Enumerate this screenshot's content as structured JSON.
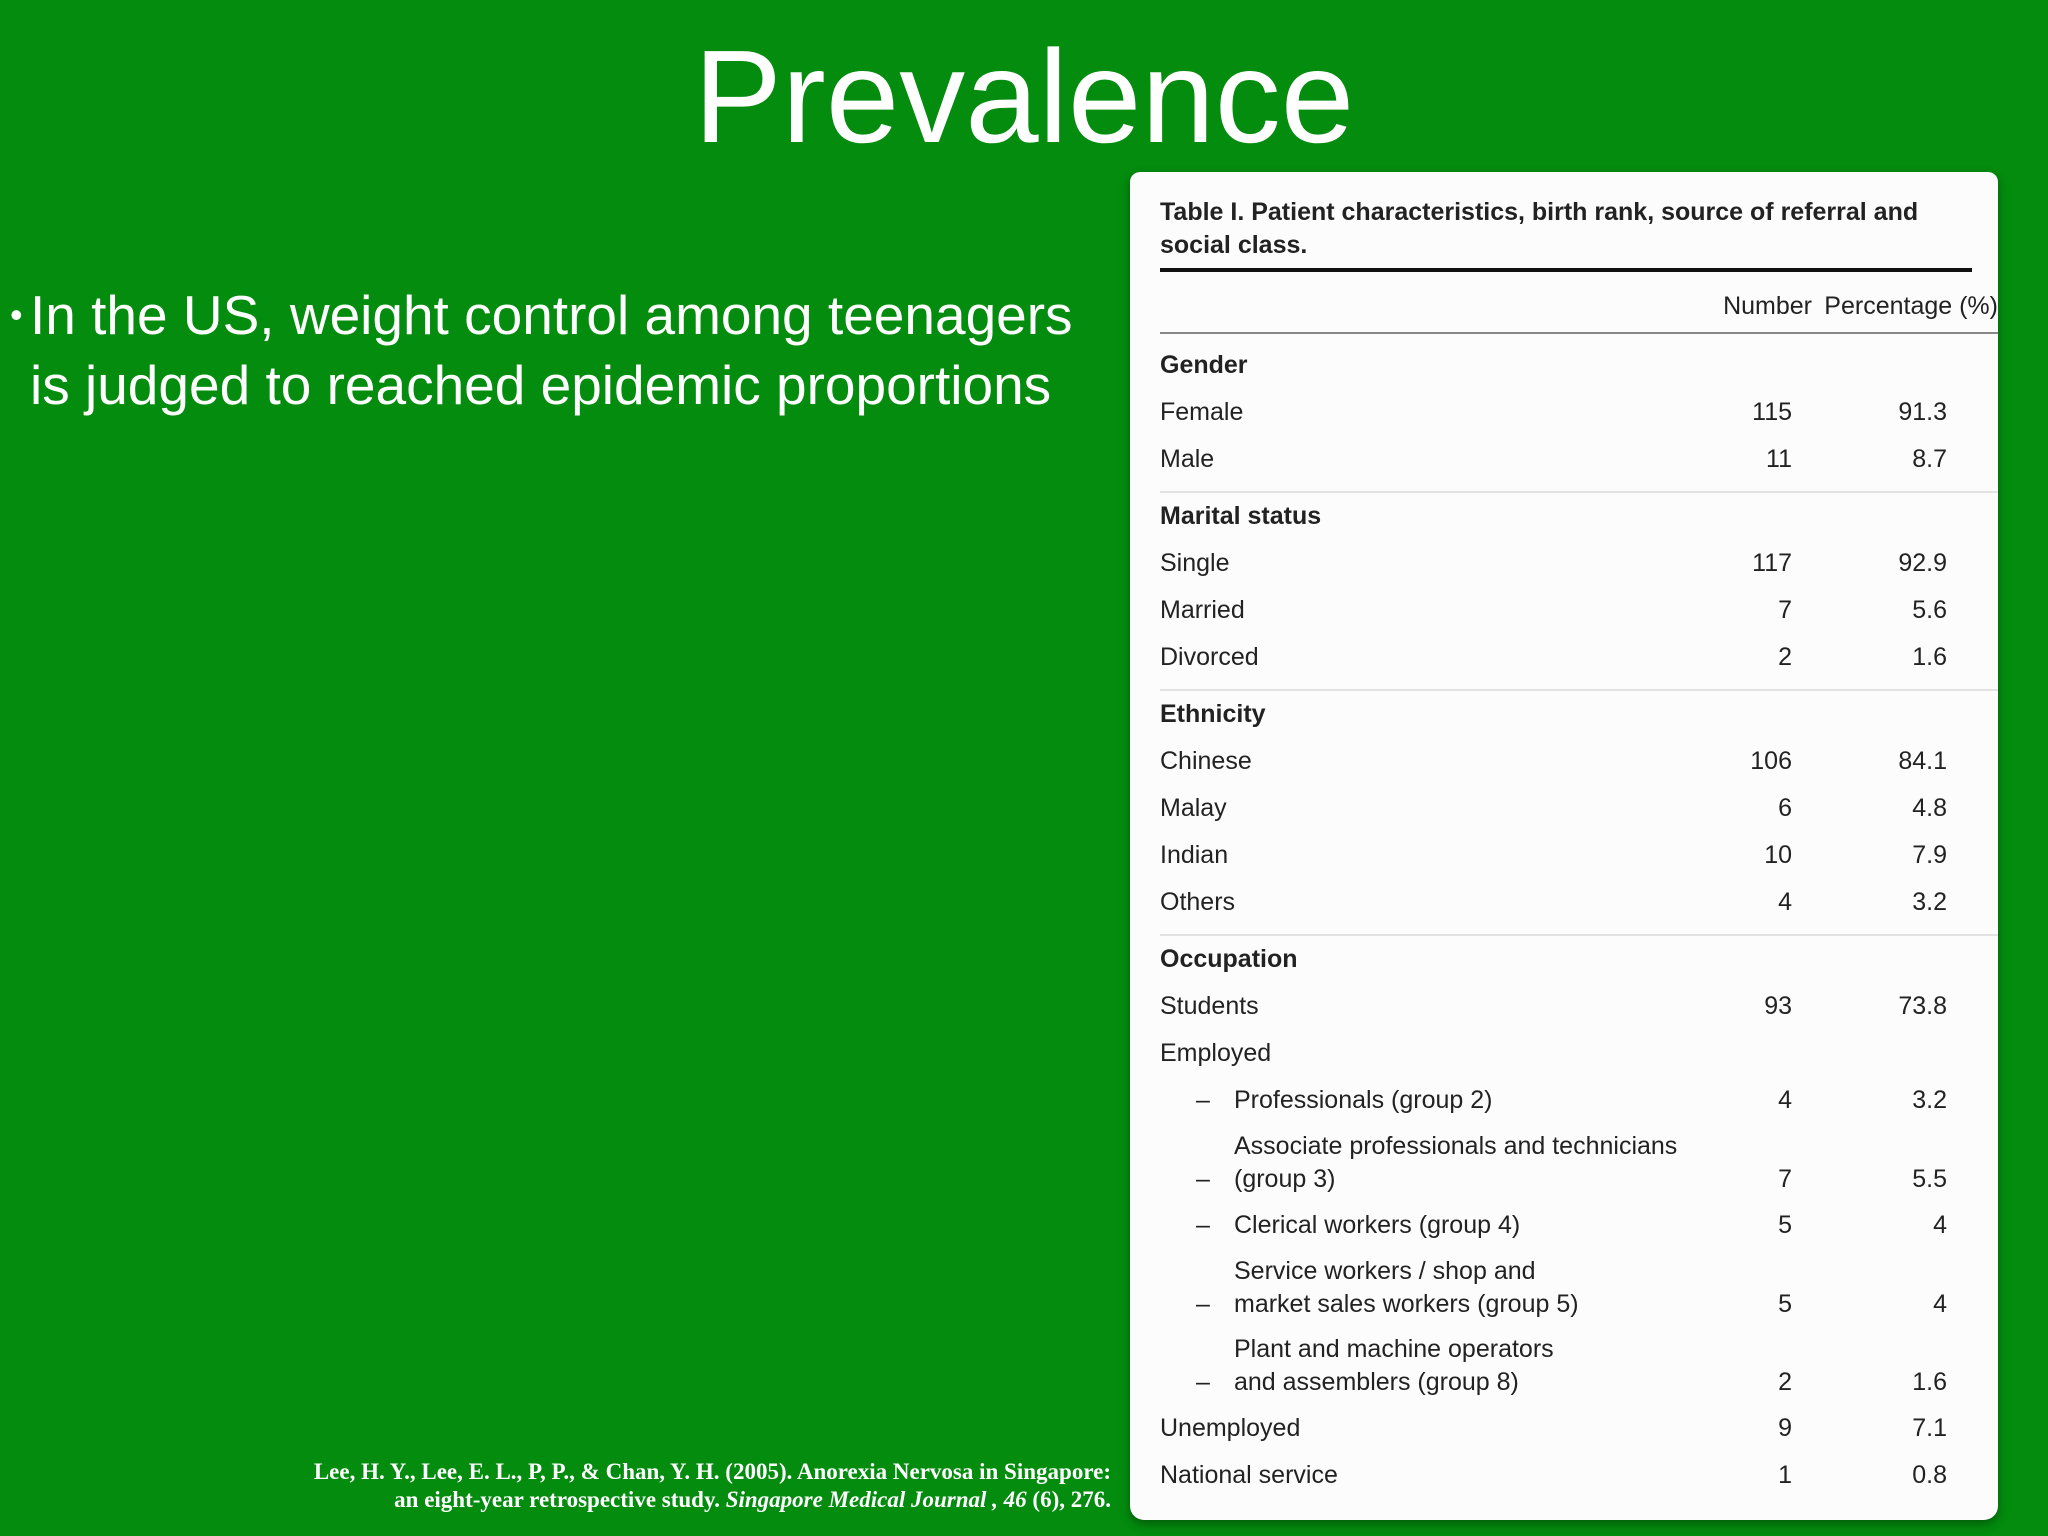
{
  "title": "Prevalence",
  "bullets": [
    "In the US, weight control among teenagers is judged to reached epidemic proportions"
  ],
  "table": {
    "caption": "Table I. Patient characteristics, birth rank, source of referral and social class.",
    "headers": [
      "Number",
      "Percentage (%)"
    ],
    "sections": [
      {
        "heading": "Gender",
        "rows": [
          {
            "label": "Female",
            "number": 115,
            "percentage": 91.3
          },
          {
            "label": "Male",
            "number": 11,
            "percentage": 8.7
          }
        ]
      },
      {
        "heading": "Marital status",
        "rows": [
          {
            "label": "Single",
            "number": 117,
            "percentage": 92.9
          },
          {
            "label": "Married",
            "number": 7,
            "percentage": 5.6
          },
          {
            "label": "Divorced",
            "number": 2,
            "percentage": 1.6
          }
        ]
      },
      {
        "heading": "Ethnicity",
        "rows": [
          {
            "label": "Chinese",
            "number": 106,
            "percentage": 84.1
          },
          {
            "label": "Malay",
            "number": 6,
            "percentage": 4.8
          },
          {
            "label": "Indian",
            "number": 10,
            "percentage": 7.9
          },
          {
            "label": "Others",
            "number": 4,
            "percentage": 3.2
          }
        ]
      },
      {
        "heading": "Occupation",
        "rows": [
          {
            "label": "Students",
            "number": 93,
            "percentage": 73.8
          },
          {
            "label": "Employed",
            "items": [
              {
                "label": [
                  "Professionals (group 2)"
                ],
                "number": 4,
                "percentage": 3.2
              },
              {
                "label": [
                  "Associate professionals and technicians",
                  "(group 3)"
                ],
                "number": 7,
                "percentage": 5.5
              },
              {
                "label": [
                  "Clerical workers (group 4)"
                ],
                "number": 5,
                "percentage": 4
              },
              {
                "label": [
                  "Service workers / shop and",
                  "market sales workers (group 5)"
                ],
                "number": 5,
                "percentage": 4
              },
              {
                "label": [
                  "Plant and machine operators",
                  "and assemblers (group 8)"
                ],
                "number": 2,
                "percentage": 1.6
              }
            ]
          },
          {
            "label": "Unemployed",
            "number": 9,
            "percentage": 7.1
          },
          {
            "label": "National service",
            "number": 1,
            "percentage": 0.8
          }
        ]
      }
    ]
  },
  "citation": {
    "line1": "Lee, H. Y., Lee, E. L., P, P., & Chan, Y. H. (2005). Anorexia Nervosa in Singapore:",
    "line2_start": "an eight-year retrospective study. ",
    "journal": "Singapore Medical Journal , 46",
    "line2_end": " (6), 276."
  }
}
